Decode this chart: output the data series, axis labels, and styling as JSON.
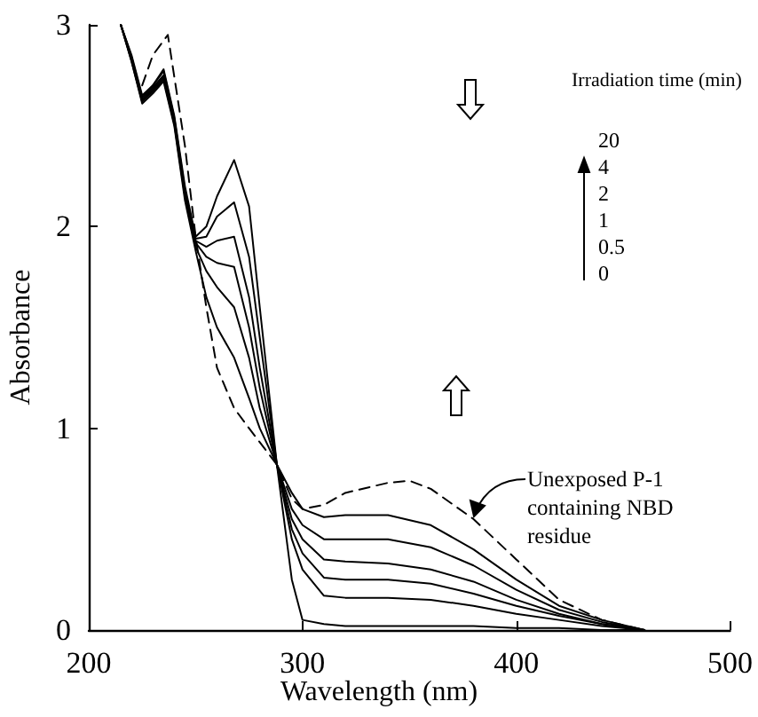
{
  "chart_data": {
    "type": "line",
    "xlabel": "Wavelength (nm)",
    "ylabel": "Absorbance",
    "xlim": [
      200,
      500
    ],
    "xticks": [
      200,
      300,
      400,
      500
    ],
    "ylim": [
      0,
      3
    ],
    "yticks": [
      0,
      1,
      2,
      3
    ],
    "grid": false,
    "marker": "none",
    "annotations": [
      "Irradiation time (min)",
      "20",
      "4",
      "2",
      "1",
      "0.5",
      "0",
      "Unexposed P-1 containing NBD residue"
    ],
    "series": [
      {
        "color": "#000000",
        "line_style": "solid",
        "x": [
          215,
          220,
          225,
          230,
          235,
          240,
          245,
          250,
          255,
          260,
          268,
          275,
          280,
          288,
          295,
          300,
          310,
          320,
          340,
          360,
          380,
          400,
          420,
          440,
          460
        ],
        "values": [
          3.0,
          2.85,
          2.65,
          2.7,
          2.78,
          2.55,
          2.2,
          1.95,
          2.0,
          2.15,
          2.33,
          2.1,
          1.6,
          0.82,
          0.25,
          0.05,
          0.03,
          0.02,
          0.02,
          0.02,
          0.02,
          0.01,
          0.01,
          0,
          0
        ]
      },
      {
        "color": "#000000",
        "line_style": "solid",
        "x": [
          215,
          220,
          225,
          230,
          235,
          240,
          245,
          250,
          255,
          260,
          268,
          275,
          280,
          288,
          295,
          300,
          310,
          320,
          340,
          360,
          380,
          400,
          420,
          440,
          460
        ],
        "values": [
          3.0,
          2.84,
          2.64,
          2.7,
          2.77,
          2.54,
          2.18,
          1.94,
          1.95,
          2.05,
          2.12,
          1.85,
          1.45,
          0.82,
          0.45,
          0.3,
          0.17,
          0.16,
          0.16,
          0.15,
          0.12,
          0.08,
          0.05,
          0.02,
          0
        ]
      },
      {
        "color": "#000000",
        "line_style": "solid",
        "x": [
          215,
          220,
          225,
          230,
          235,
          240,
          245,
          250,
          255,
          260,
          268,
          275,
          280,
          288,
          295,
          300,
          310,
          320,
          340,
          360,
          380,
          400,
          420,
          440,
          460
        ],
        "values": [
          3.0,
          2.84,
          2.63,
          2.69,
          2.75,
          2.53,
          2.17,
          1.93,
          1.9,
          1.93,
          1.95,
          1.65,
          1.3,
          0.82,
          0.5,
          0.38,
          0.26,
          0.25,
          0.25,
          0.23,
          0.18,
          0.12,
          0.07,
          0.03,
          0
        ]
      },
      {
        "color": "#000000",
        "line_style": "solid",
        "x": [
          215,
          220,
          225,
          230,
          235,
          240,
          245,
          250,
          255,
          260,
          268,
          275,
          280,
          288,
          295,
          300,
          310,
          320,
          340,
          360,
          380,
          400,
          420,
          440,
          460
        ],
        "values": [
          3.0,
          2.83,
          2.62,
          2.68,
          2.74,
          2.52,
          2.16,
          1.92,
          1.85,
          1.82,
          1.8,
          1.5,
          1.2,
          0.82,
          0.55,
          0.45,
          0.35,
          0.34,
          0.33,
          0.3,
          0.24,
          0.15,
          0.08,
          0.03,
          0
        ]
      },
      {
        "color": "#000000",
        "line_style": "solid",
        "x": [
          215,
          220,
          225,
          230,
          235,
          240,
          245,
          250,
          255,
          260,
          268,
          275,
          280,
          288,
          295,
          300,
          310,
          320,
          340,
          360,
          380,
          400,
          420,
          440,
          460
        ],
        "values": [
          3.0,
          2.82,
          2.62,
          2.67,
          2.73,
          2.51,
          2.15,
          1.9,
          1.78,
          1.7,
          1.6,
          1.35,
          1.1,
          0.82,
          0.6,
          0.52,
          0.45,
          0.45,
          0.45,
          0.41,
          0.32,
          0.2,
          0.1,
          0.04,
          0
        ]
      },
      {
        "color": "#000000",
        "line_style": "solid",
        "x": [
          215,
          220,
          225,
          230,
          235,
          240,
          245,
          250,
          255,
          260,
          268,
          275,
          280,
          288,
          295,
          300,
          310,
          320,
          340,
          360,
          380,
          400,
          420,
          440,
          460
        ],
        "values": [
          3.0,
          2.82,
          2.61,
          2.66,
          2.72,
          2.5,
          2.13,
          1.88,
          1.65,
          1.5,
          1.35,
          1.15,
          1.0,
          0.82,
          0.68,
          0.6,
          0.56,
          0.57,
          0.57,
          0.52,
          0.4,
          0.25,
          0.12,
          0.05,
          0
        ]
      },
      {
        "color": "#000000",
        "line_style": "dashed",
        "x": [
          225,
          230,
          237,
          245,
          250,
          255,
          260,
          268,
          275,
          288,
          295,
          300,
          310,
          320,
          340,
          350,
          360,
          380,
          400,
          420,
          440,
          460
        ],
        "values": [
          2.7,
          2.85,
          2.95,
          2.4,
          1.95,
          1.6,
          1.3,
          1.1,
          1.0,
          0.82,
          0.65,
          0.6,
          0.62,
          0.68,
          0.73,
          0.74,
          0.7,
          0.55,
          0.35,
          0.15,
          0.05,
          0
        ]
      }
    ]
  }
}
